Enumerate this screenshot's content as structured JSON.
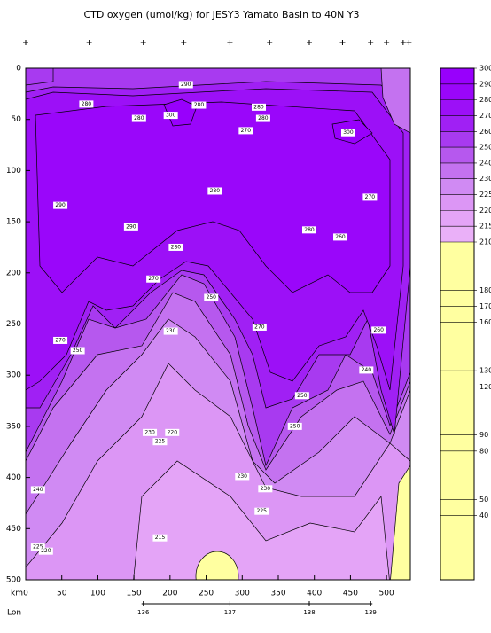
{
  "chart_data": {
    "type": "contour",
    "title": "CTD oxygen (umol/kg) for JESY3 Yamato Basin to 40N Y3",
    "x_label": "km",
    "x2_label": "Lon",
    "xlim": [
      0,
      533
    ],
    "xticks": [
      0,
      50,
      100,
      150,
      200,
      250,
      300,
      350,
      400,
      450,
      500
    ],
    "ylim": [
      0,
      500
    ],
    "yticks": [
      0,
      50,
      100,
      150,
      200,
      250,
      300,
      350,
      400,
      450,
      500
    ],
    "x2ticks": [
      {
        "value": 163,
        "label": "136"
      },
      {
        "value": 283,
        "label": "137"
      },
      {
        "value": 393,
        "label": "138"
      },
      {
        "value": 478,
        "label": "139"
      }
    ],
    "stations": [
      0,
      88,
      163,
      219,
      283,
      338,
      393,
      439,
      478,
      500,
      523,
      531
    ],
    "colorbar_levels": [
      210,
      215,
      220,
      225,
      230,
      240,
      250,
      260,
      270,
      280,
      290,
      300
    ],
    "colorbar_colors": [
      "#eab0f8",
      "#e4a4f7",
      "#dc96f5",
      "#d08af3",
      "#c472f0",
      "#b658ee",
      "#a83af0",
      "#a020f4",
      "#9c10f7",
      "#9a06fa",
      "#9800fc"
    ],
    "colorbar_low_lim": [
      0,
      210
    ],
    "colorbar_low_ticks": [
      180,
      170,
      160,
      130,
      120,
      90,
      80,
      50,
      40
    ],
    "colorbar_low_color": "#ffffa0",
    "contour_labels": [
      {
        "value": 290,
        "x": 222,
        "y": 16
      },
      {
        "value": 280,
        "x": 84,
        "y": 35
      },
      {
        "value": 280,
        "x": 157,
        "y": 49
      },
      {
        "value": 300,
        "x": 201,
        "y": 46
      },
      {
        "value": 280,
        "x": 240,
        "y": 36
      },
      {
        "value": 280,
        "x": 323,
        "y": 38
      },
      {
        "value": 280,
        "x": 329,
        "y": 49
      },
      {
        "value": 270,
        "x": 305,
        "y": 61
      },
      {
        "value": 300,
        "x": 447,
        "y": 63
      },
      {
        "value": 280,
        "x": 262,
        "y": 120
      },
      {
        "value": 290,
        "x": 48,
        "y": 134
      },
      {
        "value": 290,
        "x": 146,
        "y": 155
      },
      {
        "value": 270,
        "x": 477,
        "y": 126
      },
      {
        "value": 280,
        "x": 393,
        "y": 158
      },
      {
        "value": 260,
        "x": 436,
        "y": 165
      },
      {
        "value": 280,
        "x": 208,
        "y": 175
      },
      {
        "value": 270,
        "x": 177,
        "y": 206
      },
      {
        "value": 250,
        "x": 257,
        "y": 224
      },
      {
        "value": 270,
        "x": 324,
        "y": 253
      },
      {
        "value": 230,
        "x": 201,
        "y": 257
      },
      {
        "value": 270,
        "x": 48,
        "y": 266
      },
      {
        "value": 250,
        "x": 72,
        "y": 276
      },
      {
        "value": 260,
        "x": 489,
        "y": 256
      },
      {
        "value": 240,
        "x": 472,
        "y": 295
      },
      {
        "value": 250,
        "x": 383,
        "y": 320
      },
      {
        "value": 250,
        "x": 373,
        "y": 350
      },
      {
        "value": 230,
        "x": 172,
        "y": 356
      },
      {
        "value": 225,
        "x": 186,
        "y": 365
      },
      {
        "value": 220,
        "x": 203,
        "y": 356
      },
      {
        "value": 230,
        "x": 300,
        "y": 399
      },
      {
        "value": 230,
        "x": 332,
        "y": 411
      },
      {
        "value": 240,
        "x": 17,
        "y": 412
      },
      {
        "value": 225,
        "x": 327,
        "y": 433
      },
      {
        "value": 215,
        "x": 186,
        "y": 459
      },
      {
        "value": 225,
        "x": 17,
        "y": 468
      },
      {
        "value": 220,
        "x": 28,
        "y": 472
      }
    ]
  }
}
